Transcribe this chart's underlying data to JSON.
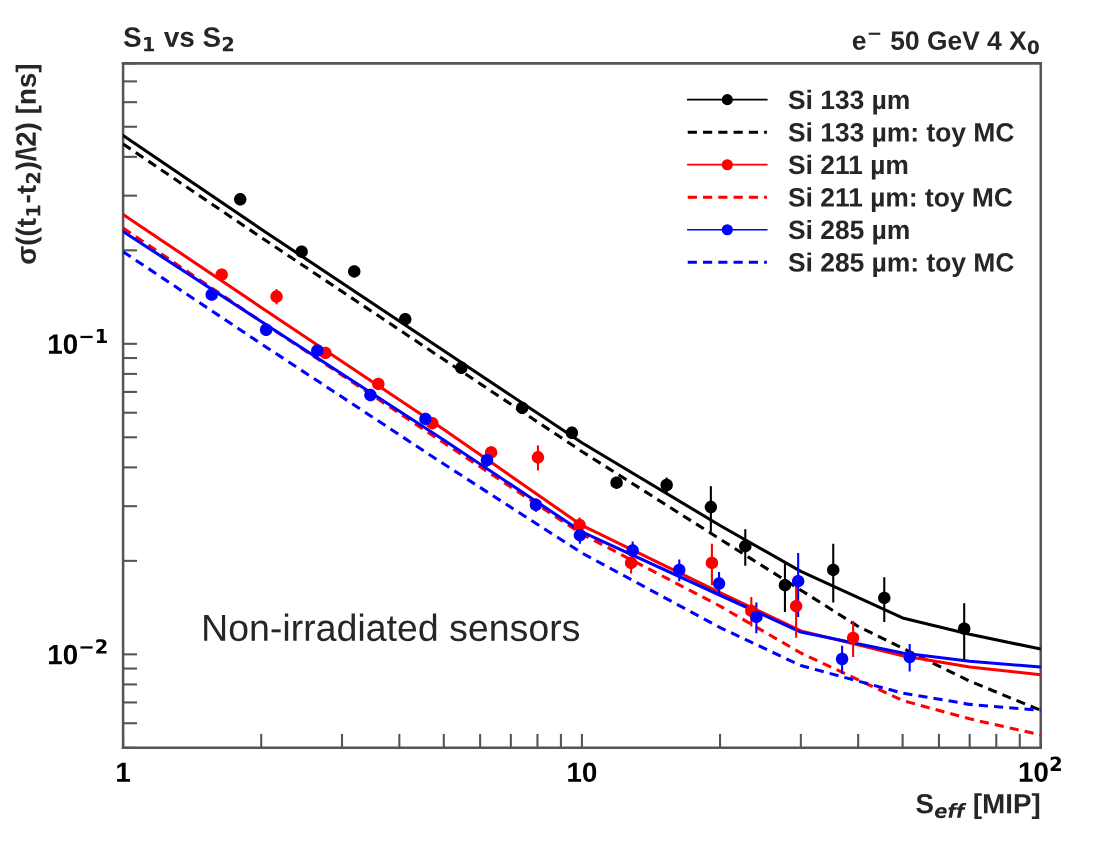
{
  "chart_data": {
    "type": "scatter",
    "title": "S$_{1}$ vs S$_{2}$",
    "xlabel": "S$_{eff}$ [MIP]",
    "ylabel": "σ((t$_{1}$-t$_{2}$)/\\2) [ns]",
    "annotations": [
      "e$^{−}$ 50 GeV 4 X$_{0}$",
      "Non-irradiated sensors"
    ],
    "log": "xy",
    "grid": false,
    "legend": "top right",
    "xlim": [
      1,
      100
    ],
    "ylim": [
      0.005,
      0.8
    ],
    "xticks": [
      {
        "value": 1,
        "label": "1"
      },
      {
        "value": 2,
        "label": null
      },
      {
        "value": 3,
        "label": null
      },
      {
        "value": 4,
        "label": null
      },
      {
        "value": 5,
        "label": null
      },
      {
        "value": 6,
        "label": null
      },
      {
        "value": 7,
        "label": null
      },
      {
        "value": 8,
        "label": null
      },
      {
        "value": 9,
        "label": null
      },
      {
        "value": 10,
        "label": "10"
      },
      {
        "value": 20,
        "label": null
      },
      {
        "value": 30,
        "label": null
      },
      {
        "value": 40,
        "label": null
      },
      {
        "value": 50,
        "label": null
      },
      {
        "value": 60,
        "label": null
      },
      {
        "value": 70,
        "label": null
      },
      {
        "value": 80,
        "label": null
      },
      {
        "value": 90,
        "label": null
      },
      {
        "value": 100,
        "label": "10$^{2}$"
      }
    ],
    "yticks": [
      {
        "value": 0.005,
        "label": null
      },
      {
        "value": 0.006,
        "label": null
      },
      {
        "value": 0.007,
        "label": null
      },
      {
        "value": 0.008,
        "label": null
      },
      {
        "value": 0.009,
        "label": null
      },
      {
        "value": 0.01,
        "label": "10$^{−2}$"
      },
      {
        "value": 0.02,
        "label": null
      },
      {
        "value": 0.03,
        "label": null
      },
      {
        "value": 0.04,
        "label": null
      },
      {
        "value": 0.05,
        "label": null
      },
      {
        "value": 0.06,
        "label": null
      },
      {
        "value": 0.07,
        "label": null
      },
      {
        "value": 0.08,
        "label": null
      },
      {
        "value": 0.09,
        "label": null
      },
      {
        "value": 0.1,
        "label": "10$^{−1}$"
      },
      {
        "value": 0.2,
        "label": null
      },
      {
        "value": 0.3,
        "label": null
      },
      {
        "value": 0.4,
        "label": null
      },
      {
        "value": 0.5,
        "label": null
      },
      {
        "value": 0.6,
        "label": null
      },
      {
        "value": 0.7,
        "label": null
      },
      {
        "value": 0.8,
        "label": null
      }
    ],
    "series": [
      {
        "name": "Si 133 µm",
        "marker": "circle",
        "color": "#000000",
        "x": [
          1.8,
          2.45,
          3.19,
          4.12,
          5.46,
          7.41,
          9.51,
          11.9,
          15.3,
          19.1,
          22.7,
          27.7,
          35.3,
          45.6,
          68.1
        ],
        "values": [
          0.292,
          0.198,
          0.171,
          0.12,
          0.0837,
          0.0622,
          0.0517,
          0.0357,
          0.0351,
          0.0298,
          0.0223,
          0.0167,
          0.0187,
          0.0152,
          0.0121
        ],
        "errors": [
          null,
          null,
          null,
          null,
          null,
          null,
          0.002,
          0.0015,
          0.002,
          0.005,
          0.003,
          0.003,
          0.004,
          0.0025,
          0.0025
        ]
      },
      {
        "name": "Si 133 µm: toy MC",
        "type": "line",
        "line_style": "dashed",
        "color": "#000000",
        "x": [
          1,
          2,
          5,
          10,
          20,
          40,
          70,
          100
        ],
        "values": [
          0.44,
          0.22,
          0.089,
          0.045,
          0.0235,
          0.0123,
          0.0082,
          0.0066
        ]
      },
      {
        "name": "Si 211 µm",
        "marker": "circle",
        "color": "#ff0000",
        "x": [
          1.64,
          2.16,
          2.76,
          3.6,
          4.72,
          6.34,
          8.02,
          9.88,
          12.8,
          19.2,
          23.4,
          29.3,
          39.0
        ],
        "values": [
          0.167,
          0.142,
          0.0935,
          0.0743,
          0.0555,
          0.0447,
          0.0431,
          0.0261,
          0.0197,
          0.0197,
          0.0138,
          0.0143,
          0.0113
        ],
        "errors": [
          null,
          0.008,
          null,
          null,
          null,
          0.002,
          0.004,
          0.0015,
          0.0015,
          0.003,
          0.0015,
          0.003,
          0.0015
        ]
      },
      {
        "name": "Si 211 µm: toy MC",
        "type": "line",
        "line_style": "dashed",
        "color": "#ff0000",
        "x": [
          1,
          2,
          5,
          10,
          20,
          30,
          50,
          70,
          100
        ],
        "values": [
          0.236,
          0.118,
          0.048,
          0.0244,
          0.0143,
          0.0101,
          0.0071,
          0.0062,
          0.0055
        ]
      },
      {
        "name": "Si 285 µm",
        "marker": "circle",
        "color": "#0000ff",
        "x": [
          1.56,
          2.05,
          2.65,
          3.46,
          4.56,
          6.21,
          7.94,
          9.9,
          12.9,
          16.3,
          19.9,
          24.0,
          29.6,
          36.9,
          51.8
        ],
        "values": [
          0.144,
          0.111,
          0.095,
          0.0684,
          0.0573,
          0.0422,
          0.0303,
          0.0242,
          0.0216,
          0.0187,
          0.0169,
          0.0132,
          0.0172,
          0.00966,
          0.0098
        ],
        "errors": [
          null,
          null,
          null,
          null,
          null,
          0.002,
          0.0015,
          0.0015,
          0.0015,
          0.0015,
          0.0015,
          0.0015,
          0.004,
          0.001,
          0.001
        ]
      },
      {
        "name": "Si 285 µm: toy MC",
        "type": "line",
        "line_style": "dashed",
        "color": "#0000ff",
        "x": [
          1,
          2,
          5,
          10,
          20,
          30,
          50,
          70,
          100
        ],
        "values": [
          0.198,
          0.1,
          0.041,
          0.0212,
          0.0122,
          0.0092,
          0.0075,
          0.0069,
          0.0066
        ]
      },
      {
        "type": "line",
        "line_style": "solid",
        "color": "#000000",
        "x": [
          1,
          2,
          5,
          10,
          20,
          30,
          50,
          70,
          100
        ],
        "values": [
          0.469,
          0.234,
          0.095,
          0.048,
          0.026,
          0.0185,
          0.0131,
          0.0116,
          0.0104
        ]
      },
      {
        "type": "line",
        "line_style": "solid",
        "color": "#ff0000",
        "x": [
          1,
          2,
          5,
          10,
          20,
          30,
          50,
          70,
          100
        ],
        "values": [
          0.261,
          0.131,
          0.053,
          0.026,
          0.0158,
          0.0119,
          0.0099,
          0.0091,
          0.0086
        ]
      },
      {
        "type": "line",
        "line_style": "solid",
        "color": "#0000ff",
        "x": [
          1,
          2,
          5,
          10,
          20,
          30,
          50,
          70,
          100
        ],
        "values": [
          0.23,
          0.118,
          0.049,
          0.0248,
          0.0155,
          0.0118,
          0.0101,
          0.0095,
          0.0091
        ]
      }
    ]
  }
}
